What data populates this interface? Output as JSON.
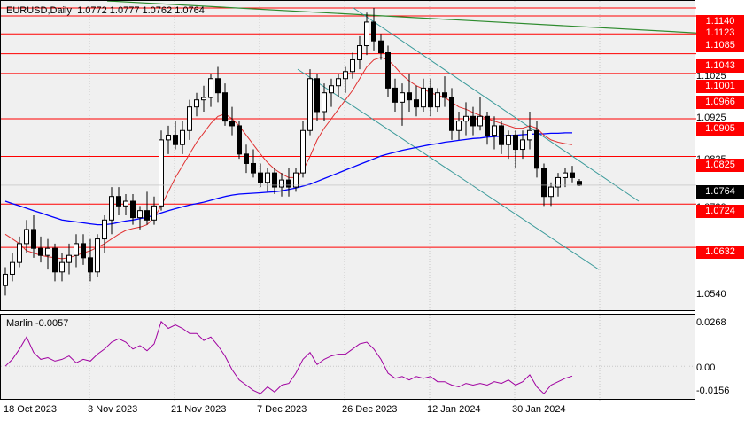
{
  "header": {
    "symbol": "EURUSD,Daily",
    "ohlc": "1.0772 1.0777 1.0762 1.0764"
  },
  "oscillator": {
    "name": "Marlin -0.0057",
    "scale": [
      "0.0268",
      "0.00",
      "-0.0156"
    ]
  },
  "price_axis": {
    "labels": [
      "1.1025",
      "1.0925",
      "1.0825",
      "1.0730",
      "1.0540"
    ],
    "levels": [
      "1.1140",
      "1.1123",
      "1.1085",
      "1.1043",
      "1.1001",
      "1.0966",
      "1.0905",
      "1.0825",
      "1.0724",
      "1.0632"
    ],
    "current": "1.0764"
  },
  "time_axis": {
    "labels": [
      "18 Oct 2023",
      "3 Nov 2023",
      "21 Nov 2023",
      "7 Dec 2023",
      "26 Dec 2023",
      "12 Jan 2024",
      "30 Jan 2024"
    ]
  },
  "colors": {
    "level_lines": "#ff0000",
    "ma_fast": "#e03030",
    "ma_slow": "#0000ff",
    "trend_green": "#2e8b2e",
    "channel": "#3a9a9a",
    "oscillator": "#a000a0"
  },
  "chart_data": {
    "type": "candlestick",
    "ylim": [
      1.0495,
      1.1155
    ],
    "candles": [
      [
        1.0551,
        1.059,
        1.053,
        1.0575
      ],
      [
        1.0575,
        1.062,
        1.056,
        1.06
      ],
      [
        1.06,
        1.0655,
        1.059,
        1.064
      ],
      [
        1.064,
        1.069,
        1.062,
        1.067
      ],
      [
        1.067,
        1.07,
        1.061,
        1.063
      ],
      [
        1.063,
        1.0655,
        1.06,
        1.0615
      ],
      [
        1.0615,
        1.065,
        1.0585,
        1.063
      ],
      [
        1.063,
        1.064,
        1.056,
        1.058
      ],
      [
        1.058,
        1.062,
        1.056,
        1.06
      ],
      [
        1.06,
        1.064,
        1.0575,
        1.0615
      ],
      [
        1.0615,
        1.066,
        1.059,
        1.064
      ],
      [
        1.064,
        1.066,
        1.0595,
        1.061
      ],
      [
        1.061,
        1.065,
        1.056,
        1.058
      ],
      [
        1.058,
        1.066,
        1.057,
        1.065
      ],
      [
        1.065,
        1.07,
        1.062,
        1.069
      ],
      [
        1.069,
        1.076,
        1.066,
        1.074
      ],
      [
        1.074,
        1.076,
        1.07,
        1.072
      ],
      [
        1.072,
        1.0745,
        1.07,
        1.073
      ],
      [
        1.073,
        1.0745,
        1.068,
        1.0695
      ],
      [
        1.0695,
        1.072,
        1.067,
        1.071
      ],
      [
        1.071,
        1.075,
        1.068,
        1.069
      ],
      [
        1.069,
        1.074,
        1.068,
        1.072
      ],
      [
        1.072,
        1.088,
        1.071,
        1.086
      ],
      [
        1.086,
        1.089,
        1.083,
        1.087
      ],
      [
        1.087,
        1.09,
        1.084,
        1.085
      ],
      [
        1.085,
        1.09,
        1.083,
        1.088
      ],
      [
        1.088,
        1.0945,
        1.086,
        1.093
      ],
      [
        1.093,
        1.096,
        1.091,
        1.0945
      ],
      [
        1.0945,
        1.0975,
        1.092,
        1.095
      ],
      [
        1.095,
        1.1,
        1.093,
        1.099
      ],
      [
        1.099,
        1.1015,
        1.094,
        1.096
      ],
      [
        1.096,
        1.098,
        1.089,
        1.09
      ],
      [
        1.09,
        1.093,
        1.087,
        1.089
      ],
      [
        1.089,
        1.09,
        1.082,
        1.083
      ],
      [
        1.083,
        1.085,
        1.079,
        1.081
      ],
      [
        1.081,
        1.084,
        1.078,
        1.079
      ],
      [
        1.079,
        1.081,
        1.076,
        1.077
      ],
      [
        1.077,
        1.08,
        1.075,
        1.079
      ],
      [
        1.079,
        1.08,
        1.0745,
        1.076
      ],
      [
        1.076,
        1.079,
        1.074,
        1.0775
      ],
      [
        1.0775,
        1.08,
        1.074,
        1.076
      ],
      [
        1.076,
        1.08,
        1.075,
        1.079
      ],
      [
        1.079,
        1.09,
        1.078,
        1.088
      ],
      [
        1.088,
        1.101,
        1.087,
        1.099
      ],
      [
        1.099,
        1.1,
        1.09,
        1.092
      ],
      [
        1.092,
        1.098,
        1.09,
        1.096
      ],
      [
        1.096,
        1.099,
        1.093,
        1.0975
      ],
      [
        1.0975,
        1.1,
        1.095,
        1.099
      ],
      [
        1.099,
        1.1015,
        1.096,
        1.1005
      ],
      [
        1.1005,
        1.1045,
        1.099,
        1.103
      ],
      [
        1.103,
        1.108,
        1.101,
        1.106
      ],
      [
        1.106,
        1.113,
        1.104,
        1.111
      ],
      [
        1.111,
        1.114,
        1.105,
        1.107
      ],
      [
        1.107,
        1.1085,
        1.103,
        1.1045
      ],
      [
        1.1045,
        1.106,
        1.095,
        1.097
      ],
      [
        1.097,
        1.099,
        1.092,
        1.094
      ],
      [
        1.094,
        1.098,
        1.089,
        1.096
      ],
      [
        1.096,
        1.1,
        1.092,
        1.0945
      ],
      [
        1.0945,
        1.0975,
        1.091,
        1.093
      ],
      [
        1.093,
        1.099,
        1.092,
        1.097
      ],
      [
        1.097,
        1.099,
        1.091,
        1.093
      ],
      [
        1.093,
        1.097,
        1.092,
        1.096
      ],
      [
        1.096,
        1.0995,
        1.093,
        1.095
      ],
      [
        1.095,
        1.097,
        1.086,
        1.088
      ],
      [
        1.088,
        1.092,
        1.086,
        1.09
      ],
      [
        1.09,
        1.094,
        1.087,
        1.091
      ],
      [
        1.091,
        1.093,
        1.087,
        1.089
      ],
      [
        1.089,
        1.095,
        1.088,
        1.091
      ],
      [
        1.091,
        1.092,
        1.085,
        1.087
      ],
      [
        1.087,
        1.091,
        1.084,
        1.089
      ],
      [
        1.089,
        1.09,
        1.083,
        1.085
      ],
      [
        1.085,
        1.088,
        1.082,
        1.087
      ],
      [
        1.087,
        1.088,
        1.08,
        1.084
      ],
      [
        1.084,
        1.088,
        1.082,
        1.086
      ],
      [
        1.086,
        1.092,
        1.084,
        1.088
      ],
      [
        1.088,
        1.09,
        1.078,
        1.08
      ],
      [
        1.08,
        1.081,
        1.072,
        1.074
      ],
      [
        1.074,
        1.077,
        1.072,
        1.076
      ],
      [
        1.076,
        1.079,
        1.074,
        1.078
      ],
      [
        1.078,
        1.08,
        1.076,
        1.079
      ],
      [
        1.079,
        1.0805,
        1.077,
        1.078
      ],
      [
        1.0772,
        1.0777,
        1.0762,
        1.0764
      ]
    ],
    "ma_fast": [
      1.066,
      1.065,
      1.064,
      1.0625,
      1.062,
      1.0615,
      1.0612,
      1.061,
      1.0608,
      1.061,
      1.0615,
      1.062,
      1.0625,
      1.0632,
      1.064,
      1.065,
      1.066,
      1.0668,
      1.0672,
      1.0675,
      1.068,
      1.0695,
      1.072,
      1.075,
      1.078,
      1.0805,
      1.083,
      1.0855,
      1.0875,
      1.0895,
      1.091,
      1.0915,
      1.0905,
      1.089,
      1.087,
      1.085,
      1.083,
      1.0812,
      1.0798,
      1.0788,
      1.078,
      1.078,
      1.0795,
      1.0825,
      1.086,
      1.0885,
      1.0905,
      1.0925,
      1.0945,
      1.0965,
      1.099,
      1.1015,
      1.103,
      1.1035,
      1.103,
      1.1015,
      1.0998,
      1.0985,
      1.0975,
      1.0968,
      1.096,
      1.0955,
      1.095,
      1.094,
      1.093,
      1.0925,
      1.0918,
      1.0912,
      1.0905,
      1.09,
      1.0895,
      1.089,
      1.0885,
      1.0885,
      1.089,
      1.0885,
      1.087,
      1.086,
      1.0855,
      1.0852,
      1.085
    ],
    "ma_slow": [
      1.073,
      1.0725,
      1.072,
      1.0715,
      1.071,
      1.0705,
      1.07,
      1.0695,
      1.069,
      1.0688,
      1.0686,
      1.0684,
      1.0682,
      1.068,
      1.068,
      1.0682,
      1.0685,
      1.0688,
      1.069,
      1.0693,
      1.0696,
      1.07,
      1.0705,
      1.071,
      1.0714,
      1.0718,
      1.0722,
      1.0725,
      1.0728,
      1.0732,
      1.0736,
      1.074,
      1.0743,
      1.0745,
      1.0746,
      1.0747,
      1.0748,
      1.0749,
      1.075,
      1.0752,
      1.0755,
      1.0758,
      1.0762,
      1.0766,
      1.0772,
      1.0778,
      1.0784,
      1.079,
      1.0796,
      1.0802,
      1.0808,
      1.0814,
      1.082,
      1.0826,
      1.083,
      1.0834,
      1.0838,
      1.0841,
      1.0844,
      1.0847,
      1.085,
      1.0852,
      1.0855,
      1.0857,
      1.0859,
      1.0861,
      1.0863,
      1.0864,
      1.0866,
      1.0867,
      1.0868,
      1.0869,
      1.087,
      1.0871,
      1.0872,
      1.0873,
      1.0873,
      1.0874,
      1.0874,
      1.0875,
      1.0875
    ],
    "oscillator_values": [
      0.0,
      0.004,
      0.01,
      0.017,
      0.008,
      0.004,
      0.005,
      0.003,
      0.004,
      0.006,
      0.002,
      0.004,
      0.003,
      0.007,
      0.01,
      0.014,
      0.016,
      0.014,
      0.01,
      0.012,
      0.009,
      0.013,
      0.026,
      0.022,
      0.024,
      0.022,
      0.019,
      0.019,
      0.015,
      0.017,
      0.012,
      0.006,
      -0.002,
      -0.008,
      -0.011,
      -0.014,
      -0.016,
      -0.012,
      -0.015,
      -0.011,
      -0.01,
      -0.004,
      0.004,
      0.008,
      0.001,
      0.004,
      0.006,
      0.007,
      0.007,
      0.01,
      0.013,
      0.014,
      0.01,
      0.004,
      -0.004,
      -0.007,
      -0.006,
      -0.008,
      -0.006,
      -0.007,
      -0.006,
      -0.009,
      -0.009,
      -0.011,
      -0.012,
      -0.01,
      -0.011,
      -0.01,
      -0.011,
      -0.009,
      -0.01,
      -0.008,
      -0.011,
      -0.009,
      -0.005,
      -0.012,
      -0.016,
      -0.011,
      -0.009,
      -0.007,
      -0.0057
    ],
    "osc_ylim": [
      -0.02,
      0.03
    ]
  }
}
